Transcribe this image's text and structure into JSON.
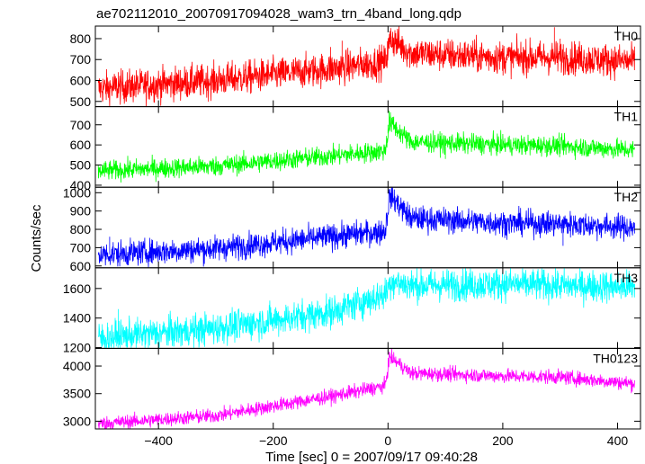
{
  "title": "ae702112010_20070917094028_wam3_trn_4band_long.qdp",
  "xlabel": "Time [sec] 0 = 2007/09/17 09:40:28",
  "ylabel": "Counts/sec",
  "chart_data": [
    {
      "type": "line",
      "name": "TH0",
      "color": "#ff0000",
      "xlim": [
        -510,
        440
      ],
      "ylim": [
        475,
        860
      ],
      "yticks": [
        500,
        600,
        700,
        800
      ],
      "trend": [
        [
          -510,
          560
        ],
        [
          -300,
          600
        ],
        [
          -100,
          655
        ],
        [
          -5,
          690
        ],
        [
          5,
          800
        ],
        [
          40,
          730
        ],
        [
          200,
          710
        ],
        [
          300,
          710
        ],
        [
          430,
          690
        ]
      ],
      "noise": 40,
      "spikes": [
        [
          -100,
          760
        ],
        [
          -80,
          790
        ],
        [
          5,
          850
        ],
        [
          290,
          855
        ],
        [
          300,
          800
        ],
        [
          -470,
          640
        ]
      ]
    },
    {
      "type": "line",
      "name": "TH1",
      "color": "#00ff00",
      "xlim": [
        -510,
        440
      ],
      "ylim": [
        390,
        790
      ],
      "yticks": [
        400,
        500,
        600,
        700
      ],
      "trend": [
        [
          -510,
          470
        ],
        [
          -300,
          495
        ],
        [
          -100,
          545
        ],
        [
          -5,
          570
        ],
        [
          3,
          710
        ],
        [
          40,
          615
        ],
        [
          200,
          600
        ],
        [
          300,
          595
        ],
        [
          430,
          575
        ]
      ],
      "noise": 25,
      "spikes": [
        [
          2,
          770
        ],
        [
          0,
          700
        ],
        [
          10,
          740
        ],
        [
          100,
          530
        ]
      ]
    },
    {
      "type": "line",
      "name": "TH2",
      "color": "#0000ff",
      "xlim": [
        -510,
        440
      ],
      "ylim": [
        590,
        1030
      ],
      "yticks": [
        600,
        700,
        800,
        900,
        1000
      ],
      "trend": [
        [
          -510,
          660
        ],
        [
          -300,
          695
        ],
        [
          -100,
          760
        ],
        [
          -5,
          790
        ],
        [
          3,
          990
        ],
        [
          40,
          860
        ],
        [
          200,
          835
        ],
        [
          300,
          830
        ],
        [
          430,
          810
        ]
      ],
      "noise": 35,
      "spikes": [
        [
          3,
          1020
        ],
        [
          -470,
          620
        ],
        [
          305,
          710
        ],
        [
          -485,
          760
        ]
      ]
    },
    {
      "type": "line",
      "name": "TH3",
      "color": "#00ffff",
      "xlim": [
        -510,
        440
      ],
      "ylim": [
        1195,
        1740
      ],
      "yticks": [
        1200,
        1400,
        1600
      ],
      "trend": [
        [
          -510,
          1260
        ],
        [
          -300,
          1330
        ],
        [
          -100,
          1440
        ],
        [
          -5,
          1560
        ],
        [
          5,
          1650
        ],
        [
          40,
          1620
        ],
        [
          200,
          1630
        ],
        [
          300,
          1620
        ],
        [
          430,
          1610
        ]
      ],
      "noise": 55,
      "spikes": [
        [
          -470,
          1460
        ],
        [
          -150,
          1490
        ],
        [
          -5,
          1620
        ],
        [
          420,
          1720
        ]
      ]
    },
    {
      "type": "line",
      "name": "TH0123",
      "color": "#ff00ff",
      "xlim": [
        -510,
        440
      ],
      "ylim": [
        2860,
        4320
      ],
      "yticks": [
        3000,
        3500,
        4000
      ],
      "trend": [
        [
          -510,
          2950
        ],
        [
          -300,
          3100
        ],
        [
          -100,
          3450
        ],
        [
          -5,
          3640
        ],
        [
          3,
          4170
        ],
        [
          40,
          3870
        ],
        [
          200,
          3820
        ],
        [
          300,
          3800
        ],
        [
          430,
          3680
        ]
      ],
      "noise": 65,
      "spikes": [
        [
          2,
          4260
        ]
      ]
    }
  ],
  "xaxis": {
    "ticks": [
      -400,
      -200,
      0,
      200,
      400
    ],
    "labels": [
      "−400",
      "−200",
      "0",
      "200",
      "400"
    ]
  }
}
